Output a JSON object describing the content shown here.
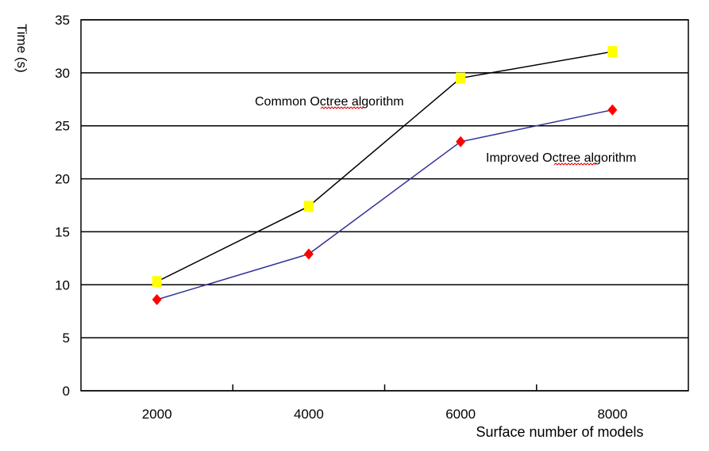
{
  "chart_data": {
    "type": "line",
    "title": "",
    "xlabel": "Surface number of models",
    "ylabel": "Time (s)",
    "categories": [
      "2000",
      "4000",
      "6000",
      "8000"
    ],
    "ylim": [
      0,
      35
    ],
    "yticks": [
      "0",
      "5",
      "10",
      "15",
      "20",
      "25",
      "30",
      "35"
    ],
    "grid": true,
    "series": [
      {
        "name": "Common Octree algorithm",
        "values": [
          10.3,
          17.4,
          29.5,
          32.0
        ],
        "line_color": "#000000",
        "marker": "square",
        "marker_color": "#ffff00"
      },
      {
        "name": "Improved Octree algorithm",
        "values": [
          8.6,
          12.9,
          23.5,
          26.5
        ],
        "line_color": "#333399",
        "marker": "diamond",
        "marker_color": "#ff0000"
      }
    ]
  }
}
